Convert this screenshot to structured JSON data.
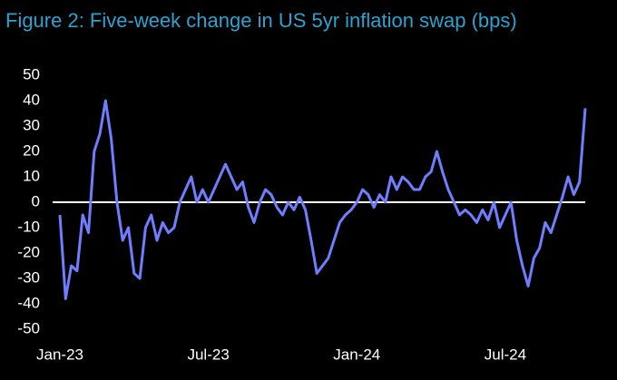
{
  "chart_data": {
    "type": "line",
    "title": "Figure 2: Five-week change in US 5yr inflation swap (bps)",
    "categories": [
      "Jan-23",
      null,
      null,
      null,
      null,
      null,
      null,
      null,
      null,
      null,
      null,
      null,
      null,
      null,
      null,
      null,
      null,
      null,
      null,
      null,
      null,
      null,
      null,
      null,
      null,
      null,
      "Jul-23",
      null,
      null,
      null,
      null,
      null,
      null,
      null,
      null,
      null,
      null,
      null,
      null,
      null,
      null,
      null,
      null,
      null,
      null,
      null,
      null,
      null,
      null,
      null,
      null,
      null,
      "Jan-24",
      null,
      null,
      null,
      null,
      null,
      null,
      null,
      null,
      null,
      null,
      null,
      null,
      null,
      null,
      null,
      null,
      null,
      null,
      null,
      null,
      null,
      null,
      null,
      null,
      null,
      "Jul-24",
      null,
      null,
      null,
      null,
      null,
      null,
      null,
      null,
      null,
      null,
      null,
      null,
      null,
      null
    ],
    "values": [
      -5,
      -38,
      -25,
      -27,
      -5,
      -12,
      20,
      27,
      40,
      25,
      0,
      -15,
      -10,
      -28,
      -30,
      -10,
      -5,
      -15,
      -8,
      -12,
      -10,
      0,
      5,
      10,
      0,
      5,
      0,
      5,
      10,
      15,
      10,
      5,
      8,
      -2,
      -8,
      0,
      5,
      3,
      -2,
      -5,
      0,
      -3,
      2,
      -3,
      -15,
      -28,
      -25,
      -22,
      -15,
      -8,
      -5,
      -3,
      0,
      5,
      3,
      -2,
      3,
      0,
      10,
      5,
      10,
      8,
      5,
      5,
      10,
      12,
      20,
      12,
      5,
      0,
      -5,
      -3,
      -5,
      -8,
      -3,
      -7,
      0,
      -10,
      -5,
      0,
      -15,
      -25,
      -33,
      -22,
      -18,
      -8,
      -12,
      -5,
      2,
      10,
      3,
      8,
      37
    ],
    "color": "#6f7dff",
    "ylim": [
      -50,
      50
    ],
    "yticks": [
      -50,
      -40,
      -30,
      -20,
      -10,
      0,
      10,
      20,
      30,
      40,
      50
    ]
  }
}
